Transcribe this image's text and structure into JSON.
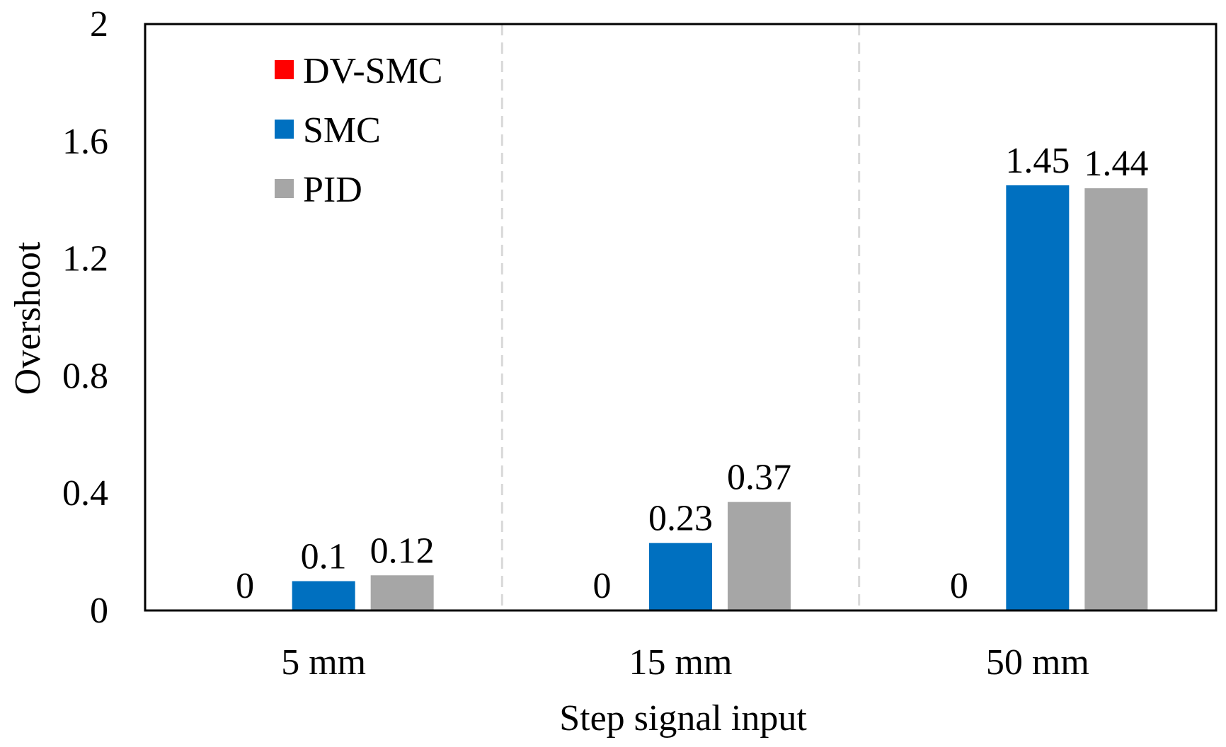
{
  "chart_data": {
    "type": "bar",
    "title": "",
    "xlabel": "Step signal input",
    "ylabel": "Overshoot",
    "categories": [
      "5 mm",
      "15 mm",
      "50 mm"
    ],
    "ylim": [
      0,
      2
    ],
    "yticks": [
      "0",
      "0.4",
      "0.8",
      "1.2",
      "1.6",
      "2"
    ],
    "ytick_values": [
      0,
      0.4,
      0.8,
      1.2,
      1.6,
      2
    ],
    "grid": false,
    "category_separators": "dashed",
    "legend_position": "top-left",
    "series": [
      {
        "name": "DV-SMC",
        "color": "#ff0000",
        "values": [
          0,
          0,
          0
        ],
        "labels": [
          "0",
          "0",
          "0"
        ]
      },
      {
        "name": "SMC",
        "color": "#0070c0",
        "values": [
          0.1,
          0.23,
          1.45
        ],
        "labels": [
          "0.1",
          "0.23",
          "1.45"
        ]
      },
      {
        "name": "PID",
        "color": "#a6a6a6",
        "values": [
          0.12,
          0.37,
          1.44
        ],
        "labels": [
          "0.12",
          "0.37",
          "1.44"
        ]
      }
    ]
  }
}
